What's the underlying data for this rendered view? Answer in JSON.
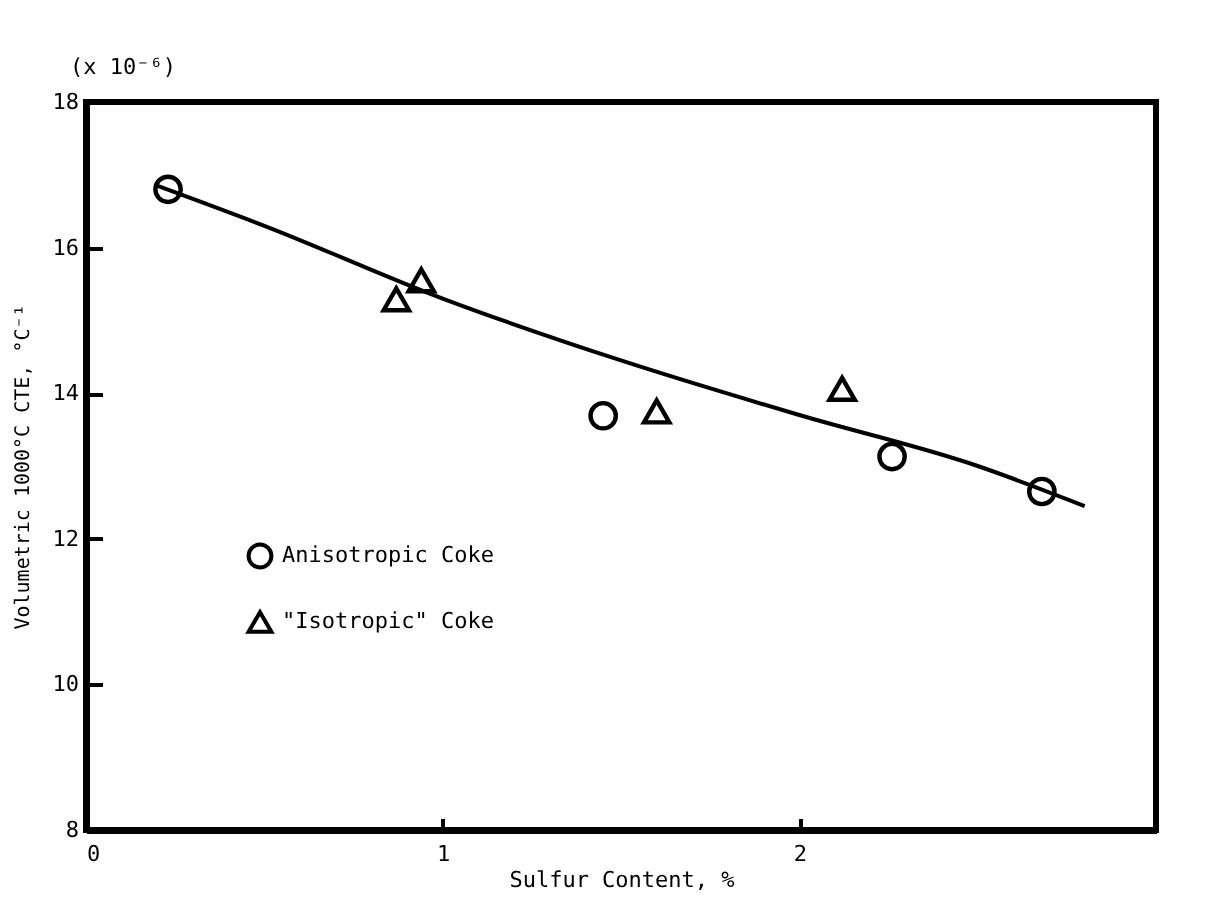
{
  "chart_data": {
    "type": "scatter",
    "xlabel": "Sulfur Content, %",
    "ylabel": "Volumetric 1000°C CTE, °C⁻¹",
    "annotations": [
      "(x 10⁻⁶)"
    ],
    "xlim": [
      0,
      3
    ],
    "ylim": [
      8,
      18
    ],
    "xticks": [
      0,
      1,
      2
    ],
    "yticks": [
      8,
      10,
      12,
      14,
      16,
      18
    ],
    "grid": false,
    "legend": "left",
    "series": [
      {
        "name": "Anisotropic Coke",
        "color": "#000000",
        "marker": "circle",
        "x": [
          0.23,
          1.45,
          2.26,
          2.68
        ],
        "values": [
          16.8,
          13.69,
          13.13,
          12.65
        ]
      },
      {
        "name": "\"Isotropic\" Coke",
        "color": "#000000",
        "marker": "triangle",
        "x": [
          0.87,
          0.94,
          1.6,
          2.12
        ],
        "values": [
          15.29,
          15.55,
          13.75,
          14.06
        ]
      },
      {
        "type": "line",
        "color": "#000000",
        "line_style": "solid",
        "x": [
          0.2,
          0.5,
          1.0,
          1.5,
          2.0,
          2.5,
          2.8
        ],
        "values": [
          16.85,
          16.3,
          15.3,
          14.45,
          13.7,
          13.0,
          12.45
        ]
      }
    ]
  }
}
